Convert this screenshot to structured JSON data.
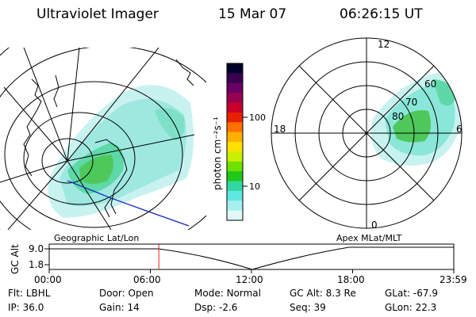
{
  "header": {
    "title": "Ultraviolet Imager",
    "date": "15 Mar 07",
    "time": "06:26:15 UT"
  },
  "colorbar": {
    "label": "photon cm⁻²s⁻¹",
    "ticks": [
      "100",
      "10"
    ],
    "colors": [
      "#000028",
      "#3a0050",
      "#6a0062",
      "#980050",
      "#c8002a",
      "#e82000",
      "#ff7000",
      "#ffb000",
      "#ffe000",
      "#c8f000",
      "#70e000",
      "#20c818",
      "#30d8a0",
      "#60e8e0",
      "#a8f0f0",
      "#e0f8f8"
    ]
  },
  "left_map": {
    "caption": "Geographic Lat/Lon"
  },
  "right_map": {
    "caption": "Apex MLat/MLT",
    "hour_labels": {
      "top": "12",
      "left": "18",
      "right": "6",
      "bottom": "0"
    },
    "lat_labels": [
      "60",
      "70",
      "80"
    ]
  },
  "timeline": {
    "axis_title": "GC Alt",
    "y_ticks": [
      "9.0",
      "1.8"
    ],
    "x_ticks": [
      "00:00",
      "06:00",
      "12:00",
      "18:00",
      "23:59"
    ],
    "current_time_fraction": 0.271
  },
  "info": {
    "row1": [
      {
        "label": "Flt:",
        "value": "LBHL"
      },
      {
        "label": "Door:",
        "value": "Open"
      },
      {
        "label": "Mode:",
        "value": "Normal"
      },
      {
        "label": "GC Alt:",
        "value": "8.3 Re"
      },
      {
        "label": "GLat:",
        "value": "-67.9"
      }
    ],
    "row2": [
      {
        "label": "IP:",
        "value": "36.0"
      },
      {
        "label": "Gain:",
        "value": "14"
      },
      {
        "label": "Dsp:",
        "value": "-2.6"
      },
      {
        "label": "Seq:",
        "value": "39"
      },
      {
        "label": "GLon:",
        "value": "22.3"
      }
    ]
  }
}
